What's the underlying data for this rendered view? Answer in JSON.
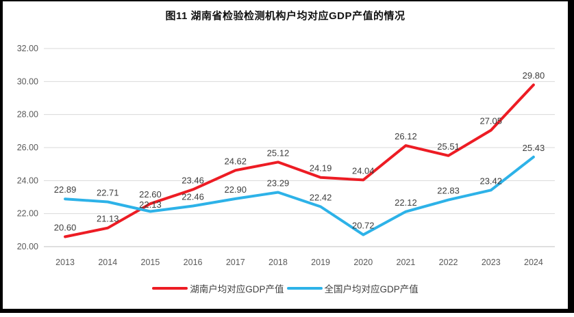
{
  "title": "图11  湖南省检验检测机构户均对应GDP产值的情况",
  "chart_data": {
    "type": "line",
    "categories": [
      "2013",
      "2014",
      "2015",
      "2016",
      "2017",
      "2018",
      "2019",
      "2020",
      "2021",
      "2022",
      "2023",
      "2024"
    ],
    "series": [
      {
        "name": "湖南户均对应GDP产值",
        "color": "#ED1C24",
        "values": [
          20.6,
          21.13,
          22.6,
          23.46,
          24.62,
          25.12,
          24.19,
          24.04,
          26.12,
          25.51,
          27.05,
          29.8
        ]
      },
      {
        "name": "全国户均对应GDP产值",
        "color": "#2DB2E8",
        "values": [
          22.89,
          22.71,
          22.13,
          22.46,
          22.9,
          23.29,
          22.42,
          20.72,
          22.12,
          22.83,
          23.42,
          25.43
        ]
      }
    ],
    "ylim": [
      20,
      32
    ],
    "y_tick_step": 2,
    "y_tick_labels": [
      "20.00",
      "22.00",
      "24.00",
      "26.00",
      "28.00",
      "30.00",
      "32.00"
    ],
    "xlabel": "",
    "ylabel": "",
    "grid": "horizontal-only",
    "data_labels": true,
    "legend_position": "bottom",
    "colors": {
      "gridline": "#D9D9D9",
      "axis_line": "#BFBFBF",
      "tick_label": "#595959",
      "data_label": "#3D3D3D",
      "frame_border": "#000000",
      "background": "#FFFFFF"
    }
  }
}
